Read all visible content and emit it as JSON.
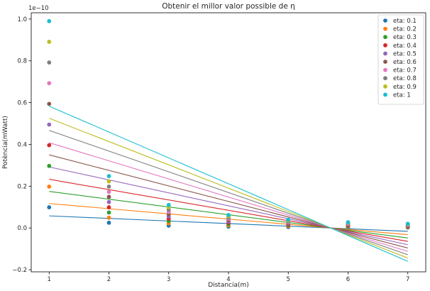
{
  "chart_data": {
    "type": "scatter",
    "title": "Obtenir el millor valor possible de η",
    "xlabel": "Distancia(m)",
    "ylabel": "Potència(mWatt)",
    "y_multiplier_label": "1e−10",
    "xlim": [
      0.7,
      7.3
    ],
    "ylim": [
      -2.1e-11,
      1.03e-10
    ],
    "x_ticks": [
      1,
      2,
      3,
      4,
      5,
      6,
      7
    ],
    "y_ticks": [
      -2e-11,
      0,
      2e-11,
      4e-11,
      6e-11,
      8e-11,
      1e-10
    ],
    "y_tick_labels": [
      "−0.2",
      "0.0",
      "0.2",
      "0.4",
      "0.6",
      "0.8",
      "1.0"
    ],
    "legend_position": "top-right",
    "grid": false,
    "x": [
      1,
      2,
      3,
      4,
      5,
      6,
      7
    ],
    "series": [
      {
        "name": "eta: 0.1",
        "color": "#1f77b4",
        "values": [
          9.9e-12,
          2.5e-12,
          1.1e-12,
          6.2e-13,
          4e-13,
          2.8e-13,
          2e-13
        ],
        "fit": [
          5.8e-12,
          -1.6e-12
        ]
      },
      {
        "name": "eta: 0.2",
        "color": "#ff7f0e",
        "values": [
          1.98e-11,
          4.9e-12,
          2.2e-12,
          1.24e-12,
          7.9e-13,
          5.5e-13,
          4e-13
        ],
        "fit": [
          1.17e-11,
          -3.2e-12
        ]
      },
      {
        "name": "eta: 0.3",
        "color": "#2ca02c",
        "values": [
          2.97e-11,
          7.4e-12,
          3.3e-12,
          1.86e-12,
          1.19e-12,
          8.3e-13,
          6.1e-13
        ],
        "fit": [
          1.75e-11,
          -4.8e-12
        ]
      },
      {
        "name": "eta: 0.4",
        "color": "#d62728",
        "values": [
          3.96e-11,
          9.9e-12,
          4.4e-12,
          2.48e-12,
          1.58e-12,
          1.1e-12,
          8.1e-13
        ],
        "fit": [
          2.33e-11,
          -6.4e-12
        ]
      },
      {
        "name": "eta: 0.5",
        "color": "#9467bd",
        "values": [
          4.95e-11,
          1.24e-11,
          5.5e-12,
          3.1e-12,
          1.98e-12,
          1.38e-12,
          1.01e-12
        ],
        "fit": [
          2.92e-11,
          -8e-12
        ]
      },
      {
        "name": "eta: 0.6",
        "color": "#8c564b",
        "values": [
          5.94e-11,
          1.49e-11,
          6.6e-12,
          3.71e-12,
          2.38e-12,
          1.65e-12,
          1.21e-12
        ],
        "fit": [
          3.5e-11,
          -9.6e-12
        ]
      },
      {
        "name": "eta: 0.7",
        "color": "#e377c2",
        "values": [
          6.93e-11,
          1.73e-11,
          7.7e-12,
          4.33e-12,
          2.77e-12,
          1.93e-12,
          1.41e-12
        ],
        "fit": [
          4.08e-11,
          -1.12e-11
        ]
      },
      {
        "name": "eta: 0.8",
        "color": "#7f7f7f",
        "values": [
          7.92e-11,
          1.98e-11,
          8.8e-12,
          4.95e-12,
          3.17e-12,
          2.2e-12,
          1.62e-12
        ],
        "fit": [
          4.67e-11,
          -1.28e-11
        ]
      },
      {
        "name": "eta: 0.9",
        "color": "#bcbd22",
        "values": [
          8.91e-11,
          2.23e-11,
          9.9e-12,
          5.57e-12,
          3.56e-12,
          2.48e-12,
          1.82e-12
        ],
        "fit": [
          5.25e-11,
          -1.44e-11
        ]
      },
      {
        "name": "eta: 1",
        "color": "#17becf",
        "values": [
          9.9e-11,
          2.48e-11,
          1.1e-11,
          6.19e-12,
          3.96e-12,
          2.75e-12,
          2.02e-12
        ],
        "fit": [
          5.83e-11,
          -1.6e-11
        ]
      }
    ]
  }
}
